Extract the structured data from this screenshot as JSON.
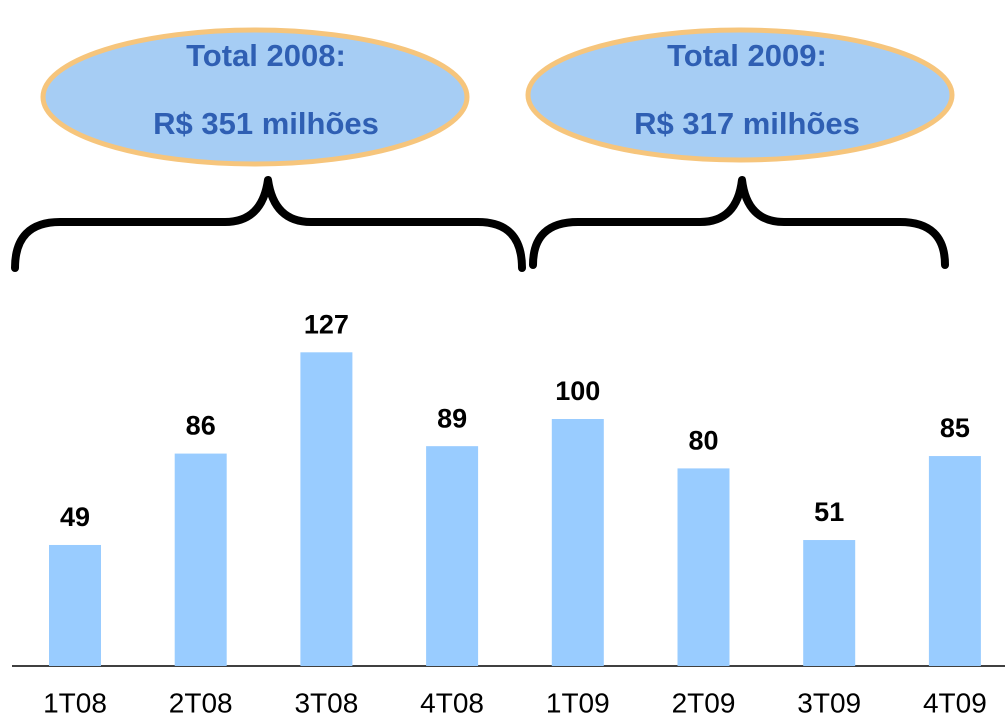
{
  "chart_data": {
    "type": "bar",
    "categories": [
      "1T08",
      "2T08",
      "3T08",
      "4T08",
      "1T09",
      "2T09",
      "3T09",
      "4T09"
    ],
    "values": [
      49,
      86,
      127,
      89,
      100,
      80,
      51,
      85
    ],
    "color": "#99ccff",
    "annotations": [
      {
        "title": "Total 2008:",
        "text": "R$ 351 milhões"
      },
      {
        "title": "Total 2009:",
        "text": "R$ 317 milhões"
      }
    ]
  }
}
